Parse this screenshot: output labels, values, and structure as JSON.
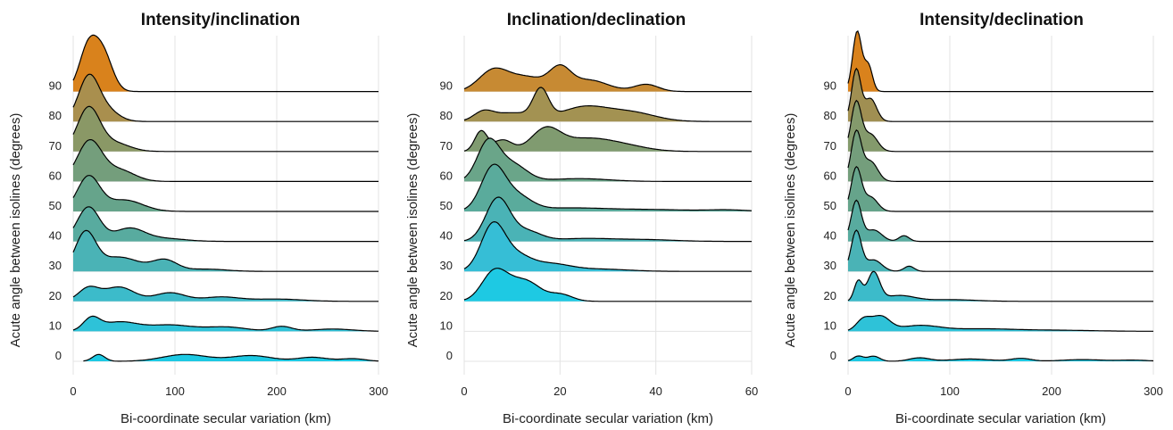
{
  "chart_data": [
    {
      "type": "ridgeline",
      "title": "Intensity/inclination",
      "xlabel": "Bi-coordinate secular variation (km)",
      "ylabel": "Acute angle between isolines (degrees)",
      "xlim": [
        0,
        300
      ],
      "xticks": [
        0,
        100,
        200,
        300
      ],
      "y_tick_labels": [
        "0",
        "10",
        "20",
        "30",
        "40",
        "50",
        "60",
        "70",
        "80",
        "90"
      ],
      "series": [
        {
          "group": "0",
          "color": "#1ec9e3",
          "start": 10,
          "peaks": [
            [
              25,
              0.24,
              6
            ],
            [
              110,
              0.24,
              22
            ],
            [
              175,
              0.2,
              20
            ],
            [
              235,
              0.14,
              15
            ],
            [
              275,
              0.09,
              12
            ]
          ]
        },
        {
          "group": "10",
          "color": "#2ec2d8",
          "start": 0,
          "peaks": [
            [
              18,
              0.42,
              8
            ],
            [
              45,
              0.32,
              18
            ],
            [
              95,
              0.22,
              22
            ],
            [
              150,
              0.15,
              20
            ],
            [
              205,
              0.17,
              10
            ],
            [
              255,
              0.08,
              20
            ]
          ]
        },
        {
          "group": "20",
          "color": "#3cbbca",
          "start": 0,
          "peaks": [
            [
              15,
              0.45,
              10
            ],
            [
              45,
              0.5,
              15
            ],
            [
              95,
              0.3,
              15
            ],
            [
              145,
              0.15,
              18
            ],
            [
              200,
              0.08,
              25
            ]
          ]
        },
        {
          "group": "30",
          "color": "#4ab3b6",
          "start": 0,
          "peaks": [
            [
              12,
              1.3,
              10
            ],
            [
              45,
              0.5,
              20
            ],
            [
              90,
              0.38,
              12
            ],
            [
              130,
              0.08,
              20
            ]
          ]
        },
        {
          "group": "40",
          "color": "#58ab9f",
          "start": 0,
          "peaks": [
            [
              15,
              1.2,
              11
            ],
            [
              55,
              0.45,
              15
            ],
            [
              90,
              0.1,
              20
            ]
          ]
        },
        {
          "group": "50",
          "color": "#66a48b",
          "start": 0,
          "peaks": [
            [
              15,
              1.2,
              11
            ],
            [
              50,
              0.4,
              18
            ]
          ]
        },
        {
          "group": "60",
          "color": "#749e7c",
          "start": 0,
          "peaks": [
            [
              16,
              1.4,
              12
            ],
            [
              45,
              0.4,
              15
            ]
          ]
        },
        {
          "group": "70",
          "color": "#8a9866",
          "start": 0,
          "peaks": [
            [
              15,
              1.5,
              11
            ],
            [
              40,
              0.3,
              15
            ]
          ]
        },
        {
          "group": "80",
          "color": "#a98f4e",
          "start": 0,
          "peaks": [
            [
              15,
              1.5,
              10
            ],
            [
              32,
              0.4,
              12
            ]
          ]
        },
        {
          "group": "90",
          "color": "#d9821c",
          "start": 0,
          "peaks": [
            [
              15,
              1.55,
              9
            ],
            [
              30,
              1.2,
              9
            ]
          ]
        }
      ]
    },
    {
      "type": "ridgeline",
      "title": "Inclination/declination",
      "xlabel": "Bi-coordinate secular variation (km)",
      "ylabel": "Acute angle between isolines (degrees)",
      "xlim": [
        0,
        60
      ],
      "xticks": [
        0,
        20,
        40,
        60
      ],
      "y_tick_labels": [
        "0",
        "10",
        "20",
        "30",
        "40",
        "50",
        "60",
        "70",
        "80",
        "90"
      ],
      "series": [
        {
          "group": "20",
          "color": "#1ec9e3",
          "start": 0,
          "peaks": [
            [
              6,
              0.8,
              2.5
            ],
            [
              10,
              0.6,
              3.5
            ],
            [
              14,
              0.35,
              2.5
            ],
            [
              20,
              0.25,
              2.5
            ]
          ]
        },
        {
          "group": "30",
          "color": "#36bed6",
          "start": 0,
          "peaks": [
            [
              6,
              1.6,
              2.5
            ],
            [
              11,
              0.5,
              3
            ],
            [
              18,
              0.25,
              4
            ],
            [
              28,
              0.08,
              6
            ]
          ]
        },
        {
          "group": "40",
          "color": "#4ab3b6",
          "start": 0,
          "peaks": [
            [
              7,
              1.5,
              2.5
            ],
            [
              13,
              0.35,
              3
            ],
            [
              25,
              0.1,
              6
            ],
            [
              38,
              0.06,
              6
            ]
          ]
        },
        {
          "group": "50",
          "color": "#5aab9c",
          "start": 0,
          "peaks": [
            [
              6,
              1.5,
              2.5
            ],
            [
              11,
              0.5,
              3
            ],
            [
              22,
              0.12,
              8
            ],
            [
              40,
              0.06,
              8
            ],
            [
              55,
              0.05,
              4
            ]
          ]
        },
        {
          "group": "60",
          "color": "#6aa589",
          "start": 0,
          "peaks": [
            [
              5,
              1.35,
              2.3
            ],
            [
              10,
              0.6,
              3
            ],
            [
              24,
              0.1,
              6
            ]
          ]
        },
        {
          "group": "70",
          "color": "#809b70",
          "start": 0,
          "peaks": [
            [
              3.5,
              0.7,
              1.3
            ],
            [
              8,
              0.4,
              2
            ],
            [
              17,
              0.75,
              3
            ],
            [
              25,
              0.4,
              5
            ],
            [
              33,
              0.2,
              5
            ]
          ]
        },
        {
          "group": "80",
          "color": "#a39252",
          "start": 0,
          "peaks": [
            [
              4,
              0.3,
              2
            ],
            [
              10,
              0.3,
              4
            ],
            [
              16,
              1.0,
              1.6
            ],
            [
              25,
              0.5,
              5
            ],
            [
              35,
              0.3,
              5
            ]
          ]
        },
        {
          "group": "90",
          "color": "#c78a33",
          "start": 0,
          "peaks": [
            [
              6,
              0.7,
              3
            ],
            [
              13,
              0.5,
              4
            ],
            [
              20,
              0.7,
              2.2
            ],
            [
              26,
              0.4,
              4
            ],
            [
              38,
              0.25,
              2.5
            ]
          ]
        }
      ]
    },
    {
      "type": "ridgeline",
      "title": "Intensity/declination",
      "xlabel": "Bi-coordinate secular variation (km)",
      "ylabel": "Acute angle between isolines (degrees)",
      "xlim": [
        0,
        300
      ],
      "xticks": [
        0,
        100,
        200,
        300
      ],
      "y_tick_labels": [
        "0",
        "10",
        "20",
        "30",
        "40",
        "50",
        "60",
        "70",
        "80",
        "90"
      ],
      "series": [
        {
          "group": "0",
          "color": "#1ec9e3",
          "start": 0,
          "peaks": [
            [
              10,
              0.18,
              5
            ],
            [
              25,
              0.18,
              6
            ],
            [
              70,
              0.12,
              10
            ],
            [
              120,
              0.08,
              20
            ],
            [
              170,
              0.1,
              10
            ],
            [
              230,
              0.06,
              20
            ],
            [
              280,
              0.04,
              15
            ]
          ]
        },
        {
          "group": "10",
          "color": "#2ec2d8",
          "start": 0,
          "peaks": [
            [
              15,
              0.4,
              7
            ],
            [
              32,
              0.5,
              9
            ],
            [
              70,
              0.2,
              20
            ],
            [
              130,
              0.08,
              30
            ],
            [
              200,
              0.04,
              40
            ]
          ]
        },
        {
          "group": "20",
          "color": "#3cbbca",
          "start": 0,
          "peaks": [
            [
              10,
              0.7,
              4
            ],
            [
              25,
              1.0,
              6
            ],
            [
              50,
              0.2,
              15
            ],
            [
              100,
              0.06,
              25
            ]
          ]
        },
        {
          "group": "30",
          "color": "#4ab3b6",
          "start": 0,
          "peaks": [
            [
              8,
              1.4,
              5
            ],
            [
              25,
              0.4,
              8
            ],
            [
              60,
              0.18,
              5
            ]
          ]
        },
        {
          "group": "40",
          "color": "#58ab9f",
          "start": 0,
          "peaks": [
            [
              8,
              1.4,
              5
            ],
            [
              25,
              0.4,
              8
            ],
            [
              55,
              0.2,
              5
            ]
          ]
        },
        {
          "group": "50",
          "color": "#66a48b",
          "start": 0,
          "peaks": [
            [
              8,
              1.5,
              5
            ],
            [
              22,
              0.5,
              7
            ]
          ]
        },
        {
          "group": "60",
          "color": "#749e7c",
          "start": 0,
          "peaks": [
            [
              8,
              1.7,
              5
            ],
            [
              22,
              0.7,
              7
            ]
          ]
        },
        {
          "group": "70",
          "color": "#849a6c",
          "start": 0,
          "peaks": [
            [
              8,
              1.7,
              5
            ],
            [
              22,
              0.6,
              7
            ]
          ]
        },
        {
          "group": "80",
          "color": "#a08f52",
          "start": 0,
          "peaks": [
            [
              8,
              1.8,
              4.5
            ],
            [
              22,
              0.8,
              6
            ]
          ]
        },
        {
          "group": "90",
          "color": "#d9821c",
          "start": 0,
          "peaks": [
            [
              9,
              2.1,
              4.5
            ],
            [
              20,
              0.9,
              4
            ]
          ]
        }
      ]
    }
  ]
}
